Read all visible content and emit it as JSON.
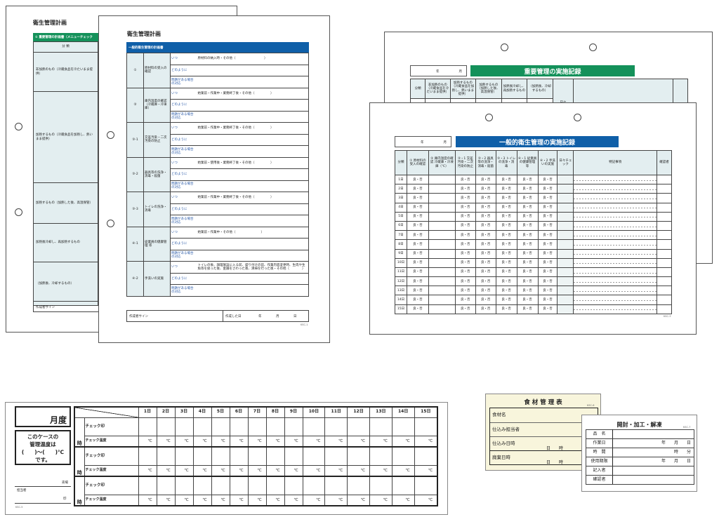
{
  "colors": {
    "blue": "#0f5fa8",
    "green": "#14915a",
    "shade": "#e3eef0",
    "card_bg": "#f8f5dc"
  },
  "plan_back": {
    "title": "衛生管理計画",
    "header": "① 重要管理の計画書（メニューチェック",
    "col_category": "分 類",
    "col_menu": "メニ",
    "rows": [
      "非加熱のもの（冷蔵食品を冷たいまま提供）",
      "加熱するもの（冷蔵食品を加熱し、熱いまま提供）",
      "加熱するもの（加熱した後、高温保管）",
      "加熱後冷却し、再加熱するもの",
      "（加熱後、冷却するもの）"
    ],
    "sign": "作成者サイン"
  },
  "plan_front": {
    "title": "衛生管理計画",
    "header": "一般的衛生管理の計画書",
    "sub_when": "いつ",
    "sub_how": "どのように",
    "sub_problem": "問題がある場合の対応",
    "items": [
      {
        "no": "①",
        "name": "原材料の受入の確認",
        "when": "原材料の納入時・その他（　　　　　　　　　）"
      },
      {
        "no": "②",
        "name": "庫内温度の確認（冷蔵庫・冷凍庫）",
        "when": "始業前・作業中・業務終了後・その他（　　　　　）"
      },
      {
        "no": "③-1",
        "name": "交差汚染・二次汚染の防止",
        "when": "始業前・作業中・業務終了後・その他（　　　　　）"
      },
      {
        "no": "③-2",
        "name": "器具等の洗浄・消毒・殺菌",
        "when": "始業前・使用後・業務終了後・その他（　　　　　）"
      },
      {
        "no": "③-3",
        "name": "トイレの洗浄・消毒",
        "when": "始業前・作業中・業務終了後・その他（　　　　　）"
      },
      {
        "no": "④-1",
        "name": "従業員の健康管理 等",
        "when": "始業前・作業中・その他（　　　　　　　　）"
      },
      {
        "no": "④-2",
        "name": "手洗いの実施",
        "when": "トイレの後、調理施設に入る前、盛り付けの前、作業内容変更時、生肉や生魚等を扱った後、金銭をさわった後、清掃を行った後・その他（　　　　）"
      }
    ],
    "sign": "作成者サイン",
    "date_label": "作成した日",
    "year": "年",
    "month": "月",
    "day": "日",
    "code": "KSC-1"
  },
  "record_back": {
    "year": "年",
    "month": "月",
    "title": "重要管理の実施記録",
    "cols": [
      "分類",
      "非加熱のもの（冷蔵食品を冷たいまま提供）",
      "加熱するもの（冷蔵食品を加熱し、熱いまま提供）",
      "加熱するもの（加熱した後、高温保管）",
      "加熱後冷却し、再加熱するもの",
      "（加熱後、冷却するもの）",
      "日々"
    ]
  },
  "record_front": {
    "year": "年",
    "month": "月",
    "title": "一般的衛生管理の実施記録",
    "cols": [
      "分類",
      "① 原材料の受入の確認",
      "② 庫内温度の確認 冷蔵庫・冷凍庫（℃）",
      "③・1 交差汚染・二次汚染の防止",
      "③・2 器具等の洗浄・消毒・殺菌",
      "③・3 トイレの洗浄・消毒",
      "④・1 従業員の健康管理等",
      "④・2 手洗いの実施",
      "日々チェック",
      "特記事項",
      "確認者"
    ],
    "days": [
      "1日",
      "2日",
      "3日",
      "4日",
      "5日",
      "6日",
      "7日",
      "8日",
      "9日",
      "10日",
      "11日",
      "12日",
      "13日",
      "14日",
      "15日"
    ],
    "ok_ng": "良・否",
    "code": "KSC-3"
  },
  "temp_strip": {
    "month_label": "月度",
    "case_text": [
      "このケースの",
      "管理温度は",
      "(　　)〜(　　)℃",
      "です。"
    ],
    "shop": "売場",
    "person": "担当者",
    "seal": "印",
    "code": "KSC-5",
    "days": [
      "1日",
      "2日",
      "3日",
      "4日",
      "5日",
      "6日",
      "7日",
      "8日",
      "9日",
      "10日",
      "11日",
      "12日",
      "13日",
      "14日",
      "15日"
    ],
    "hour": "時",
    "check_seal": "チェック印",
    "check_temp": "チェック温度",
    "unit": "℃"
  },
  "food_card": {
    "title": "食 材 管 理 表",
    "code": "KSC-6",
    "rows": [
      {
        "label": "食材名",
        "tail": ""
      },
      {
        "label": "仕込み担当者",
        "tail": ""
      },
      {
        "label": "仕込み日時",
        "tail": "日　　時"
      },
      {
        "label": "廃棄日時",
        "tail": "日　　時"
      }
    ]
  },
  "open_card": {
    "title": "開封・加工・解凍",
    "code": "KSC-7",
    "rows": [
      {
        "label": "品　名",
        "value": ""
      },
      {
        "label": "作業日",
        "value": "年　　月　　日"
      },
      {
        "label": "時　間",
        "value": "時　　分"
      },
      {
        "label": "使用期限",
        "value": "年　　月　　日"
      },
      {
        "label": "記入者",
        "value": ""
      },
      {
        "label": "確認者",
        "value": ""
      }
    ]
  }
}
